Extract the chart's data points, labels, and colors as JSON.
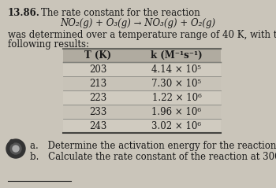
{
  "problem_number": "13.86.",
  "intro_text": "The rate constant for the reaction",
  "reaction_line": "NO₂(g) + O₃(g) → NO₃(g) + O₂(g)",
  "body_text1": "was determined over a temperature range of 40 K, with the",
  "body_text2": "following results:",
  "col_header_T": "T (K)",
  "col_header_k": "k (M⁻¹s⁻¹)",
  "temperatures": [
    "203",
    "213",
    "223",
    "233",
    "243"
  ],
  "k_values": [
    "4.14 × 10⁵",
    "7.30 × 10⁵",
    "1.22 × 10⁶",
    "1.96 × 10⁶",
    "3.02 × 10⁶"
  ],
  "part_a": "a. Determine the activation energy for the reaction.",
  "part_b": "b. Calculate the rate constant of the reaction at 300 K.",
  "bg_color": "#cac5ba",
  "table_header_bg": "#b0aba0",
  "table_row_bg1": "#d0cbc0",
  "table_row_bg2": "#c8c3b8",
  "text_color": "#1a1a1a",
  "font_size": 8.5
}
